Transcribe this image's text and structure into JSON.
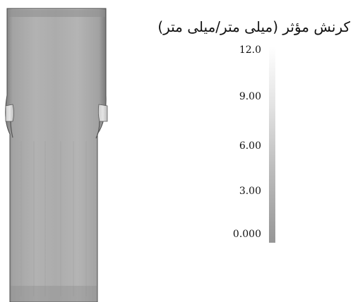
{
  "legend": {
    "title": "کرنش مؤثر (میلی متر/میلی متر)",
    "ticks": [
      "12.0",
      "9.00",
      "6.00",
      "3.00",
      "0.000"
    ]
  },
  "colors": {
    "background": "#ffffff",
    "scale_high": "#ffffff",
    "scale_low": "#969696",
    "part_body": "#a7a7a7",
    "part_edge": "#4a4a4a"
  }
}
